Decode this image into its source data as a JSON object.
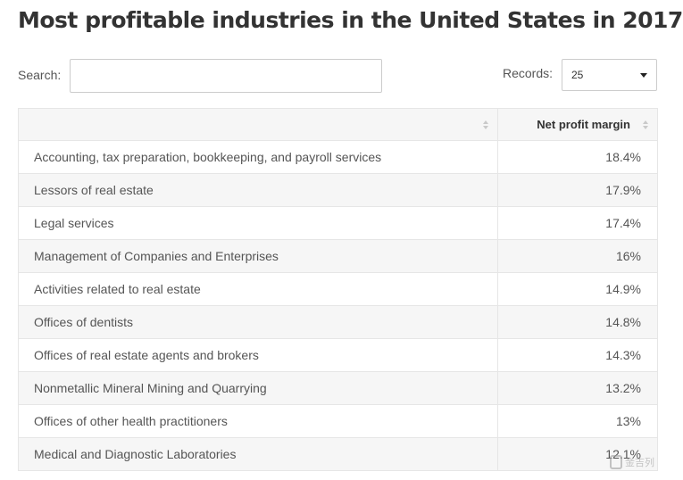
{
  "page": {
    "title": "Most profitable industries in the United States in 2017"
  },
  "controls": {
    "search_label": "Search:",
    "search_value": "",
    "records_label": "Records:",
    "records_value": "25"
  },
  "table": {
    "columns": [
      "",
      "Net profit margin"
    ],
    "rows": [
      {
        "industry": "Accounting, tax preparation, bookkeeping, and payroll services",
        "margin": "18.4%"
      },
      {
        "industry": "Lessors of real estate",
        "margin": "17.9%"
      },
      {
        "industry": "Legal services",
        "margin": "17.4%"
      },
      {
        "industry": "Management of Companies and Enterprises",
        "margin": "16%"
      },
      {
        "industry": "Activities related to real estate",
        "margin": "14.9%"
      },
      {
        "industry": "Offices of dentists",
        "margin": "14.8%"
      },
      {
        "industry": "Offices of real estate agents and brokers",
        "margin": "14.3%"
      },
      {
        "industry": "Nonmetallic Mineral Mining and Quarrying",
        "margin": "13.2%"
      },
      {
        "industry": "Offices of other health practitioners",
        "margin": "13%"
      },
      {
        "industry": "Medical and Diagnostic Laboratories",
        "margin": "12.1%"
      }
    ]
  },
  "watermark": {
    "text": "金吉列"
  }
}
